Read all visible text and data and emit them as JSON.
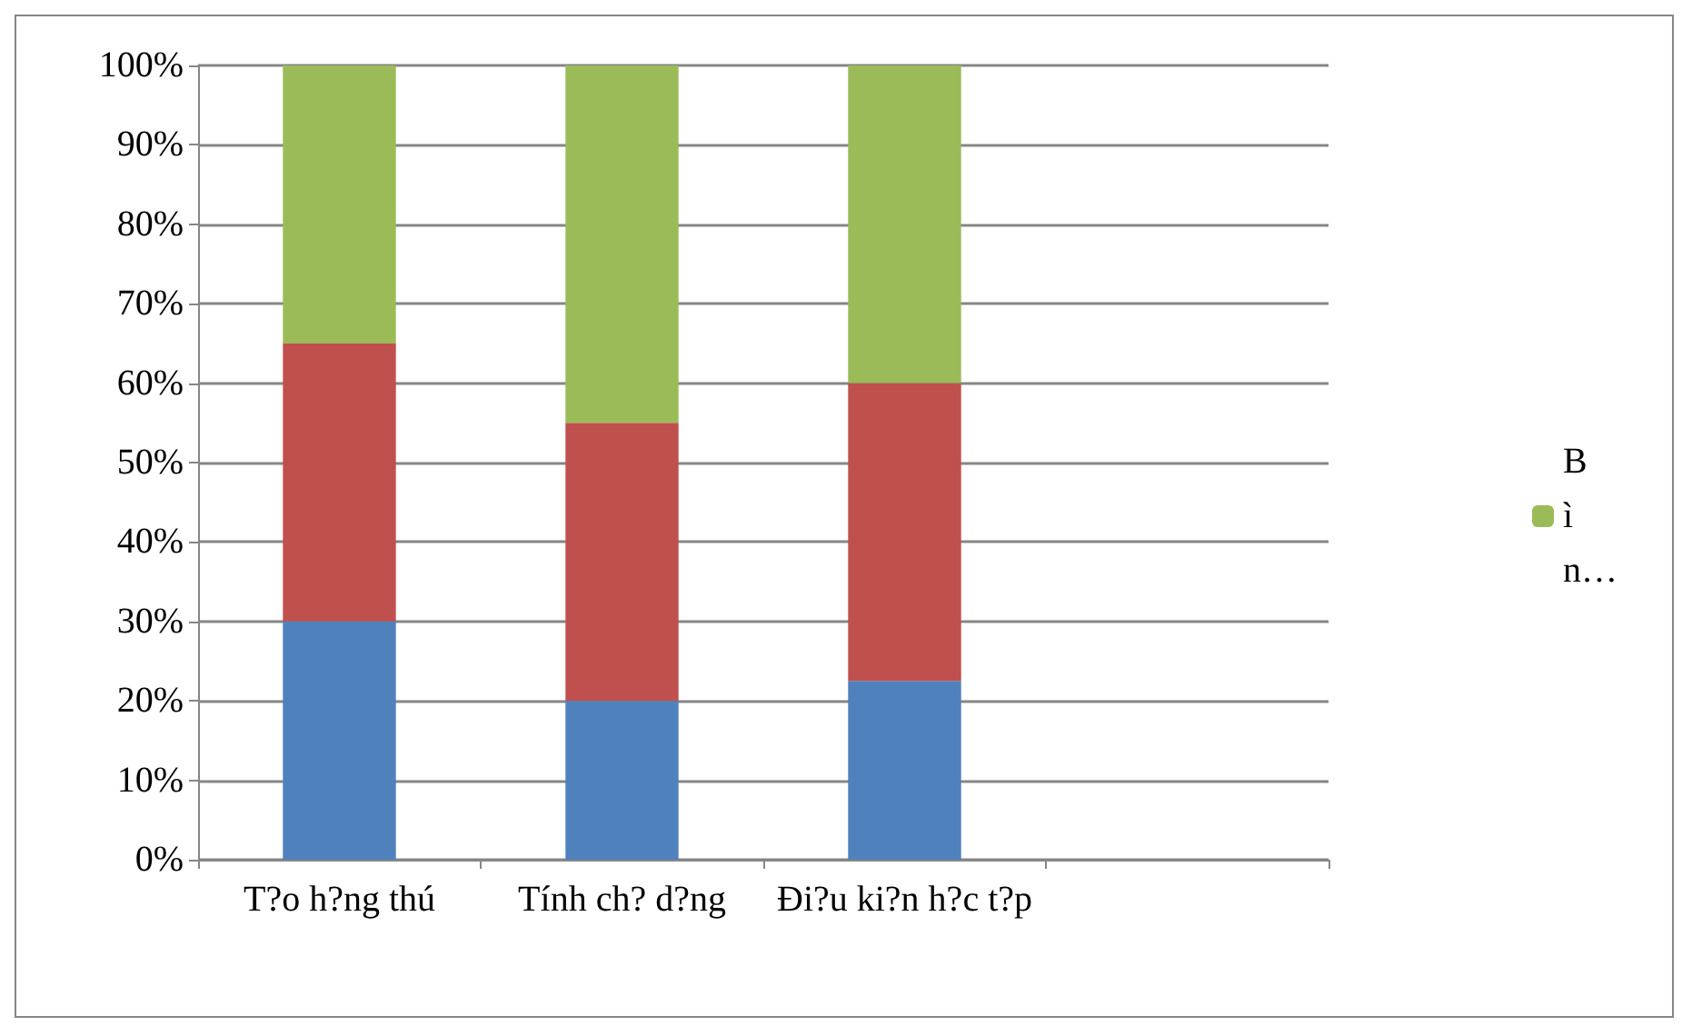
{
  "chart_data": {
    "type": "bar",
    "stacked": true,
    "categories": [
      "T?o h?ng thú",
      "Tính ch? d?ng",
      "Đi?u ki?n h?c t?p",
      null
    ],
    "series": [
      {
        "color": "#4f81bd",
        "values": [
          30,
          20,
          22.5,
          null
        ]
      },
      {
        "color": "#c0504d",
        "values": [
          35,
          35,
          37.5,
          null
        ]
      },
      {
        "name": "Bì n…",
        "color": "#9bbb59",
        "values": [
          35,
          45,
          40,
          null
        ]
      }
    ],
    "ylim": [
      0,
      100
    ],
    "yticks": [
      {
        "value": 0,
        "label": "0%"
      },
      {
        "value": 10,
        "label": "10%"
      },
      {
        "value": 20,
        "label": "20%"
      },
      {
        "value": 30,
        "label": "30%"
      },
      {
        "value": 40,
        "label": "40%"
      },
      {
        "value": 50,
        "label": "50%"
      },
      {
        "value": 60,
        "label": "60%"
      },
      {
        "value": 70,
        "label": "70%"
      },
      {
        "value": 80,
        "label": "80%"
      },
      {
        "value": 90,
        "label": "90%"
      },
      {
        "value": 100,
        "label": "100%"
      }
    ],
    "grid": "y",
    "legend": "right"
  }
}
